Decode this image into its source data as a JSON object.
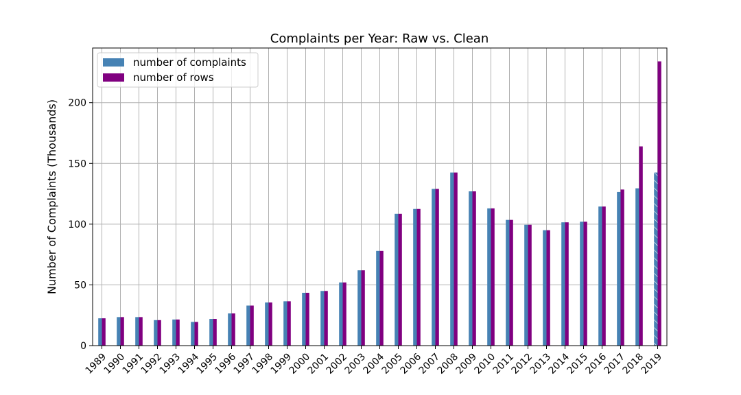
{
  "chart_data": {
    "type": "bar",
    "title": "Complaints per Year: Raw vs. Clean",
    "xlabel": "",
    "ylabel": "Number of Complaints (Thousands)",
    "ylim": [
      0,
      245
    ],
    "yticks": [
      0,
      50,
      100,
      150,
      200
    ],
    "grid": true,
    "legend_position": "top-left",
    "categories": [
      "1989",
      "1990",
      "1991",
      "1992",
      "1993",
      "1994",
      "1995",
      "1996",
      "1997",
      "1998",
      "1999",
      "2000",
      "2001",
      "2002",
      "2003",
      "2004",
      "2005",
      "2006",
      "2007",
      "2008",
      "2009",
      "2010",
      "2011",
      "2012",
      "2013",
      "2014",
      "2015",
      "2016",
      "2017",
      "2018",
      "2019"
    ],
    "series": [
      {
        "name": "number of complaints",
        "color": "#4682b4",
        "values": [
          22.5,
          23.5,
          23.5,
          21,
          21.5,
          19.5,
          22,
          26.5,
          33,
          35.5,
          36.5,
          43.5,
          45,
          52,
          62,
          78,
          108.5,
          112.5,
          129,
          142.5,
          127,
          113,
          103.5,
          99.5,
          95,
          101.5,
          102,
          114.5,
          126.5,
          129.5,
          142.5
        ],
        "hatched_categories": [
          "2019"
        ]
      },
      {
        "name": "number of rows",
        "color": "#800080",
        "values": [
          22.5,
          23.5,
          23.5,
          21,
          21.5,
          19.5,
          22,
          26.5,
          33,
          35.5,
          36.5,
          43.5,
          45,
          52,
          62,
          78,
          108.5,
          112.5,
          129,
          142.5,
          127,
          113,
          103.5,
          99.5,
          95,
          101.5,
          102,
          114.5,
          128.5,
          164,
          234
        ]
      }
    ]
  }
}
